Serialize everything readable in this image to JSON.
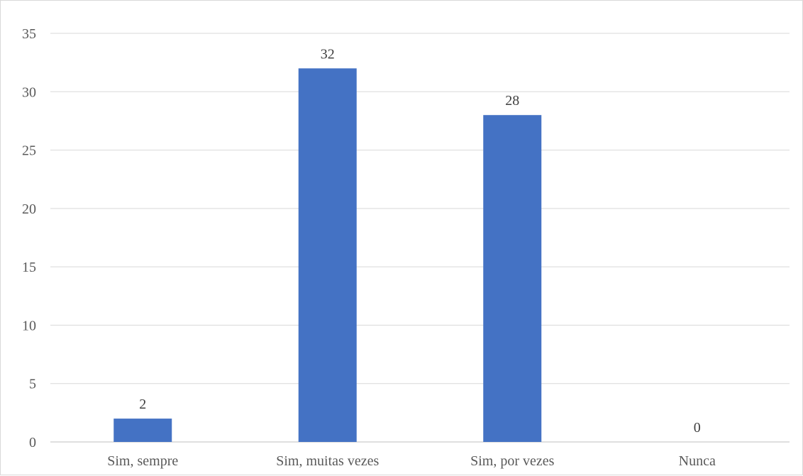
{
  "chart_data": {
    "type": "bar",
    "categories": [
      "Sim, sempre",
      "Sim, muitas vezes",
      "Sim, por vezes",
      "Nunca"
    ],
    "values": [
      2,
      32,
      28,
      0
    ],
    "data_labels": [
      "2",
      "32",
      "28",
      "0"
    ],
    "y_ticks": [
      "0",
      "5",
      "10",
      "15",
      "20",
      "25",
      "30",
      "35"
    ],
    "title": "",
    "xlabel": "",
    "ylabel": "",
    "ylim": [
      0,
      35
    ],
    "grid": true,
    "legend": "none",
    "bar_color": "#4472C4",
    "grid_color": "#D9D9D9"
  }
}
